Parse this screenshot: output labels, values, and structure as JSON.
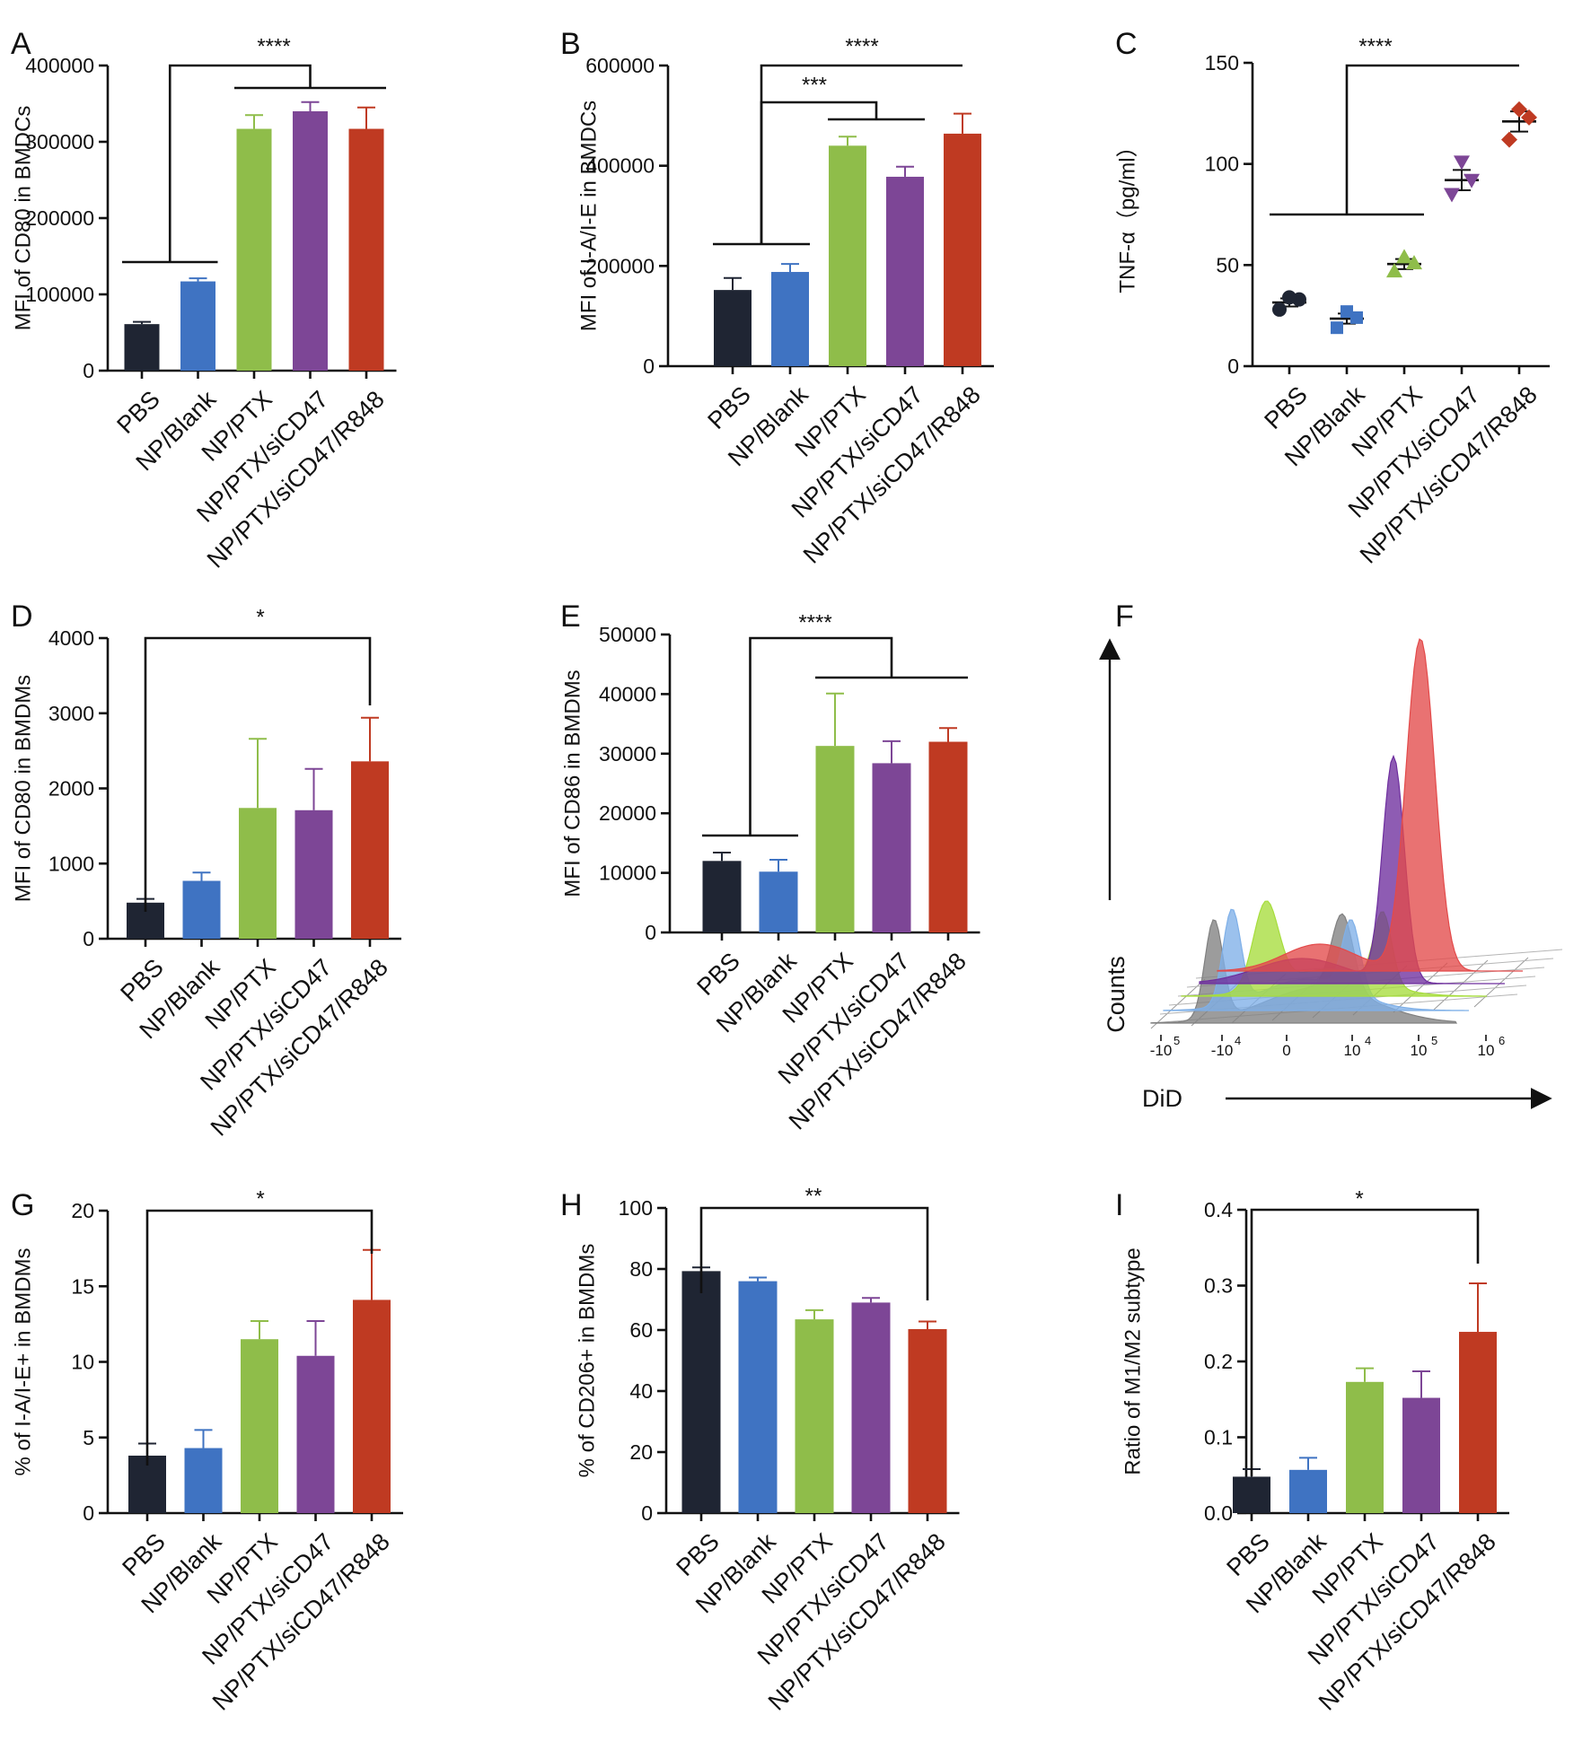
{
  "groups": [
    "PBS",
    "NP/Blank",
    "NP/PTX",
    "NP/PTX/siCD47",
    "NP/PTX/siCD47/R848"
  ],
  "colors": {
    "PBS": "#1f2533",
    "NP/Blank": "#3f73c2",
    "NP/PTX": "#8fbd4a",
    "NP/PTX/siCD47": "#7d4696",
    "NP/PTX/siCD47/R848": "#bf3a22"
  },
  "chart_data": [
    {
      "panel": "A",
      "type": "bar",
      "ylabel": "MFI of CD80 in BMDCs",
      "ylim": [
        0,
        400000
      ],
      "ticks": [
        0,
        100000,
        200000,
        300000,
        400000
      ],
      "tick_labels": [
        "0",
        "100000",
        "200000",
        "300000",
        "400000"
      ],
      "categories": [
        "PBS",
        "NP/Blank",
        "NP/PTX",
        "NP/PTX/siCD47",
        "NP/PTX/siCD47/R848"
      ],
      "values": [
        61000,
        117000,
        317000,
        340000,
        317000
      ],
      "errors": [
        3000,
        4000,
        18000,
        12000,
        28000
      ],
      "significance": [
        {
          "label": "****"
        }
      ]
    },
    {
      "panel": "B",
      "type": "bar",
      "ylabel": "MFI of I-A/I-E in BMDCs",
      "ylim": [
        0,
        600000
      ],
      "ticks": [
        0,
        200000,
        400000,
        600000
      ],
      "tick_labels": [
        "0",
        "200000",
        "400000",
        "600000"
      ],
      "categories": [
        "PBS",
        "NP/Blank",
        "NP/PTX",
        "NP/PTX/siCD47",
        "NP/PTX/siCD47/R848"
      ],
      "values": [
        152000,
        188000,
        440000,
        378000,
        464000
      ],
      "errors": [
        24000,
        16000,
        18000,
        20000,
        40000
      ],
      "significance": [
        {
          "label": "****"
        },
        {
          "label": "***"
        }
      ]
    },
    {
      "panel": "C",
      "type": "scatter",
      "ylabel": "TNF-α（pg/ml）",
      "ylim": [
        0,
        150
      ],
      "ticks": [
        0,
        50,
        100,
        150
      ],
      "tick_labels": [
        "0",
        "50",
        "100",
        "150"
      ],
      "categories": [
        "PBS",
        "NP/Blank",
        "NP/PTX",
        "NP/PTX/siCD47",
        "NP/PTX/siCD47/R848"
      ],
      "points": [
        [
          28,
          33,
          34
        ],
        [
          19,
          24,
          27
        ],
        [
          47,
          51,
          54
        ],
        [
          85,
          92,
          101
        ],
        [
          112,
          123,
          127
        ]
      ],
      "means": [
        31.5,
        23.5,
        50.5,
        92,
        121
      ],
      "errors": [
        2,
        2.5,
        2.5,
        5,
        5
      ],
      "significance": [
        {
          "label": "****"
        }
      ]
    },
    {
      "panel": "D",
      "type": "bar",
      "ylabel": "MFI of CD80 in BMDMs",
      "ylim": [
        0,
        4000
      ],
      "ticks": [
        0,
        1000,
        2000,
        3000,
        4000
      ],
      "tick_labels": [
        "0",
        "1000",
        "2000",
        "3000",
        "4000"
      ],
      "categories": [
        "PBS",
        "NP/Blank",
        "NP/PTX",
        "NP/PTX/siCD47",
        "NP/PTX/siCD47/R848"
      ],
      "values": [
        480,
        770,
        1740,
        1710,
        2360
      ],
      "errors": [
        50,
        110,
        920,
        550,
        580
      ],
      "significance": [
        {
          "label": "*"
        }
      ]
    },
    {
      "panel": "E",
      "type": "bar",
      "ylabel": "MFI of CD86 in BMDMs",
      "ylim": [
        0,
        50000
      ],
      "ticks": [
        0,
        10000,
        20000,
        30000,
        40000,
        50000
      ],
      "tick_labels": [
        "0",
        "10000",
        "20000",
        "30000",
        "40000",
        "50000"
      ],
      "categories": [
        "PBS",
        "NP/Blank",
        "NP/PTX",
        "NP/PTX/siCD47",
        "NP/PTX/siCD47/R848"
      ],
      "values": [
        12000,
        10200,
        31300,
        28400,
        32000
      ],
      "errors": [
        1400,
        2000,
        8800,
        3700,
        2300
      ],
      "significance": [
        {
          "label": "****"
        }
      ]
    },
    {
      "panel": "G",
      "type": "bar",
      "ylabel": "% of I-A/I-E+ in BMDMs",
      "ylim": [
        0,
        20
      ],
      "ticks": [
        0,
        5,
        10,
        15,
        20
      ],
      "tick_labels": [
        "0",
        "5",
        "10",
        "15",
        "20"
      ],
      "categories": [
        "PBS",
        "NP/Blank",
        "NP/PTX",
        "NP/PTX/siCD47",
        "NP/PTX/siCD47/R848"
      ],
      "values": [
        3.8,
        4.3,
        11.5,
        10.4,
        14.1
      ],
      "errors": [
        0.8,
        1.2,
        1.2,
        2.3,
        3.3
      ],
      "significance": [
        {
          "label": "*"
        }
      ]
    },
    {
      "panel": "H",
      "type": "bar",
      "ylabel": "% of CD206+ in BMDMs",
      "ylim": [
        0,
        100
      ],
      "ticks": [
        0,
        20,
        40,
        60,
        80,
        100
      ],
      "tick_labels": [
        "0",
        "20",
        "40",
        "60",
        "80",
        "100"
      ],
      "categories": [
        "PBS",
        "NP/Blank",
        "NP/PTX",
        "NP/PTX/siCD47",
        "NP/PTX/siCD47/R848"
      ],
      "values": [
        79.3,
        76,
        63.5,
        69,
        60.3
      ],
      "errors": [
        1.2,
        1.2,
        3,
        1.5,
        2.5
      ],
      "significance": [
        {
          "label": "**"
        }
      ]
    },
    {
      "panel": "I",
      "type": "bar",
      "ylabel": "Ratio of M1/M2 subtype",
      "ylim": [
        0,
        0.4
      ],
      "ticks": [
        0,
        0.1,
        0.2,
        0.3,
        0.4
      ],
      "tick_labels": [
        "0.0",
        "0.1",
        "0.2",
        "0.3",
        "0.4"
      ],
      "categories": [
        "PBS",
        "NP/Blank",
        "NP/PTX",
        "NP/PTX/siCD47",
        "NP/PTX/siCD47/R848"
      ],
      "values": [
        0.048,
        0.057,
        0.173,
        0.152,
        0.239
      ],
      "errors": [
        0.01,
        0.016,
        0.018,
        0.035,
        0.064
      ],
      "significance": [
        {
          "label": "*"
        }
      ]
    }
  ],
  "histogram": {
    "panel": "F",
    "ylabel": "Counts",
    "xlabel": "DiD",
    "tick_labels": [
      "-10",
      "-10",
      "0",
      "10",
      "10",
      "10"
    ],
    "tick_exponents": [
      "5",
      "4",
      "",
      "4",
      "5",
      "6"
    ],
    "series_order": [
      "PBS",
      "NP/Blank",
      "NP/PTX",
      "NP/PTX/siCD47",
      "NP/PTX/siCD47/R848"
    ],
    "series_colors": [
      "#808080",
      "#7fb0e8",
      "#a6dd3c",
      "#6e2e9e",
      "#e34a4a"
    ]
  },
  "panel_labels": [
    "A",
    "B",
    "C",
    "D",
    "E",
    "F",
    "G",
    "H",
    "I"
  ]
}
